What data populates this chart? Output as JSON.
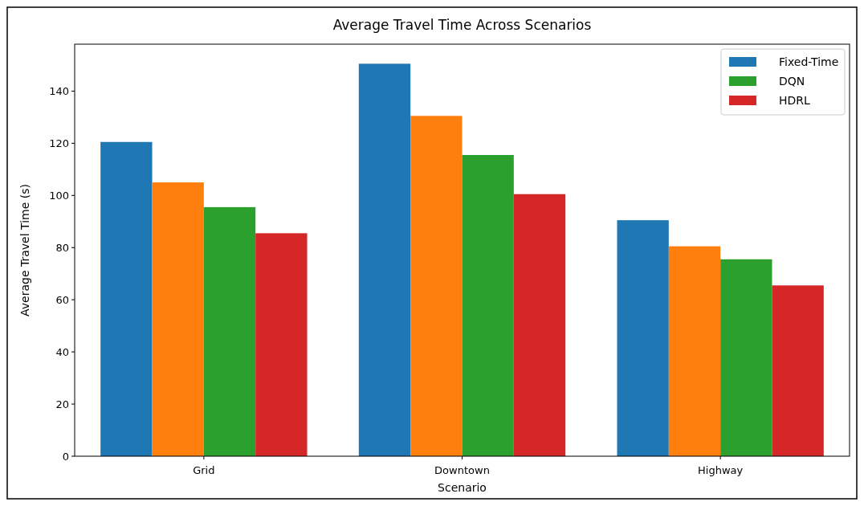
{
  "chart_data": {
    "type": "bar",
    "title": "Average Travel Time Across Scenarios",
    "xlabel": "Scenario",
    "ylabel": "Average Travel Time (s)",
    "categories": [
      "Grid",
      "Downtown",
      "Highway"
    ],
    "series": [
      {
        "name": "Fixed-Time",
        "color": "#1f77b4",
        "values": [
          120.5,
          150.5,
          90.5
        ]
      },
      {
        "color": "#ff7f0e",
        "values": [
          105,
          130.5,
          80.5
        ]
      },
      {
        "name": "DQN",
        "color": "#2ca02c",
        "values": [
          95.5,
          115.5,
          75.5
        ]
      },
      {
        "name": "HDRL",
        "color": "#d62728",
        "values": [
          85.5,
          100.5,
          65.5
        ]
      }
    ],
    "ylim": [
      0,
      158
    ],
    "yticks": [
      0,
      20,
      40,
      60,
      80,
      100,
      120,
      140
    ],
    "grid": false,
    "legend": "top right"
  }
}
